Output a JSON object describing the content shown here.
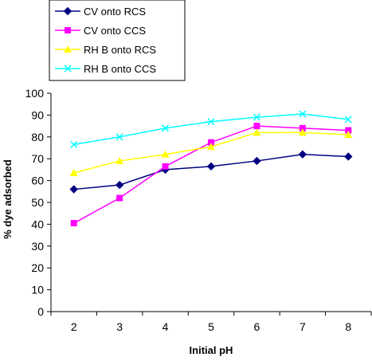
{
  "chart_data": {
    "type": "line",
    "title": "",
    "xlabel": "Initial pH",
    "ylabel": "% dye adsorbed",
    "categories": [
      "2",
      "3",
      "4",
      "5",
      "6",
      "7",
      "8"
    ],
    "ylim": [
      0,
      100
    ],
    "yticks": [
      "0",
      "10",
      "20",
      "30",
      "40",
      "50",
      "60",
      "70",
      "80",
      "90",
      "100"
    ],
    "grid": false,
    "legend_position": "top-left",
    "series": [
      {
        "name": "CV onto RCS",
        "color": "#000080",
        "marker": "diamond",
        "values": [
          56,
          58,
          65,
          66.5,
          69,
          72,
          71
        ]
      },
      {
        "name": "CV onto CCS",
        "color": "#ff00ff",
        "marker": "square",
        "values": [
          40.5,
          52,
          66.5,
          77.5,
          85,
          84,
          83
        ]
      },
      {
        "name": "RH B onto RCS",
        "color": "#ffff00",
        "marker": "triangle",
        "values": [
          63.5,
          69,
          72,
          75.5,
          82,
          82,
          81
        ]
      },
      {
        "name": "RH B onto CCS",
        "color": "#00ffff",
        "marker": "x",
        "values": [
          76.5,
          80,
          84,
          87,
          89,
          90.5,
          88
        ]
      }
    ]
  }
}
